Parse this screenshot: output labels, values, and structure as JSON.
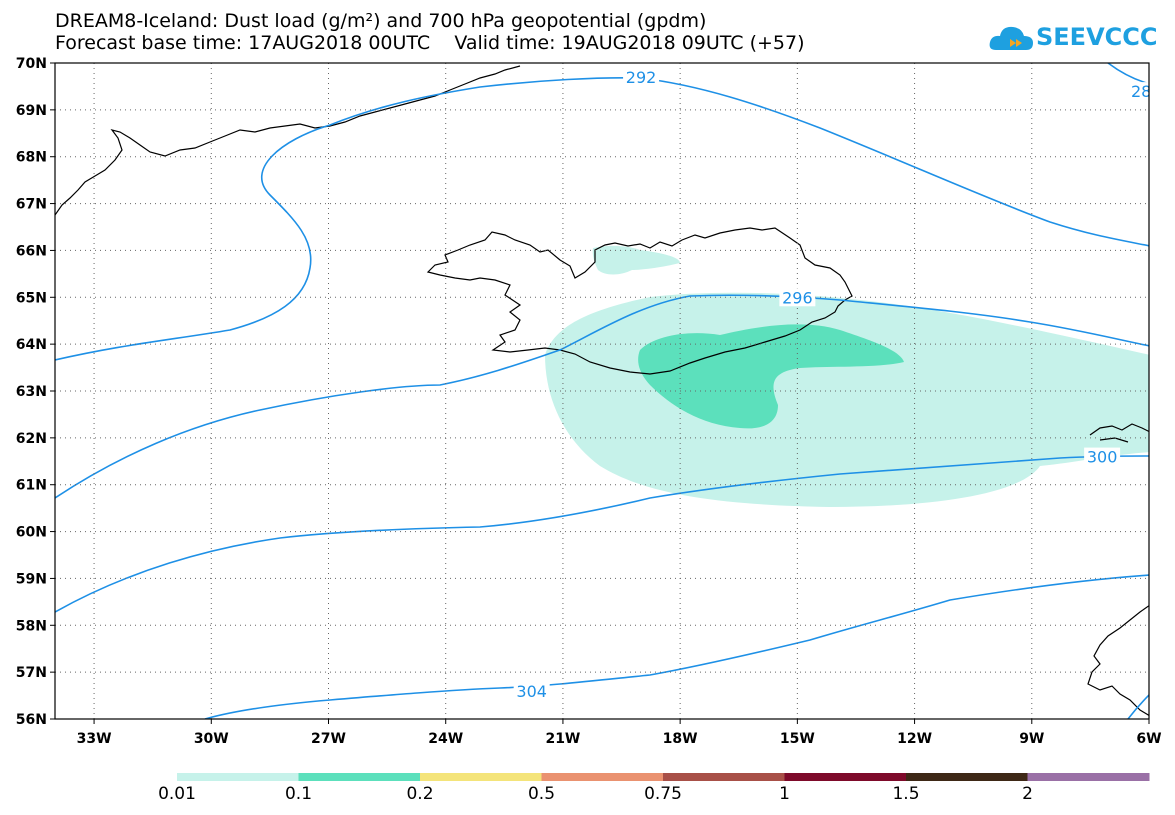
{
  "title": {
    "line1": "DREAM8-Iceland: Dust load (g/m²) and 700 hPa geopotential (gpdm)",
    "line2": "Forecast base time: 17AUG2018 00UTC    Valid time: 19AUG2018 09UTC (+57)"
  },
  "logo": {
    "text": "SEEVCCC",
    "icon": "cloud-logo-icon"
  },
  "map": {
    "lon_range": [
      -34,
      -6
    ],
    "lat_range": [
      56,
      70
    ],
    "lon_ticks": [
      {
        "value": -33,
        "label": "33W"
      },
      {
        "value": -30,
        "label": "30W"
      },
      {
        "value": -27,
        "label": "27W"
      },
      {
        "value": -24,
        "label": "24W"
      },
      {
        "value": -21,
        "label": "21W"
      },
      {
        "value": -18,
        "label": "18W"
      },
      {
        "value": -15,
        "label": "15W"
      },
      {
        "value": -12,
        "label": "12W"
      },
      {
        "value": -9,
        "label": "9W"
      },
      {
        "value": -6,
        "label": "6W"
      }
    ],
    "lat_ticks": [
      {
        "value": 70,
        "label": "70N"
      },
      {
        "value": 69,
        "label": "69N"
      },
      {
        "value": 68,
        "label": "68N"
      },
      {
        "value": 67,
        "label": "67N"
      },
      {
        "value": 66,
        "label": "66N"
      },
      {
        "value": 65,
        "label": "65N"
      },
      {
        "value": 64,
        "label": "64N"
      },
      {
        "value": 63,
        "label": "63N"
      },
      {
        "value": 62,
        "label": "62N"
      },
      {
        "value": 61,
        "label": "61N"
      },
      {
        "value": 60,
        "label": "60N"
      },
      {
        "value": 59,
        "label": "59N"
      },
      {
        "value": 58,
        "label": "58N"
      },
      {
        "value": 57,
        "label": "57N"
      },
      {
        "value": 56,
        "label": "56N"
      }
    ],
    "grid": "dotted",
    "contour_color": "#1e90e6",
    "contour_labels": [
      {
        "text": "292",
        "lon": -19.0,
        "lat": 69.7
      },
      {
        "text": "28",
        "lon": -6.2,
        "lat": 69.4
      },
      {
        "text": "296",
        "lon": -15.0,
        "lat": 65.0
      },
      {
        "text": "300",
        "lon": -7.2,
        "lat": 61.6
      },
      {
        "text": "304",
        "lon": -21.8,
        "lat": 56.6
      }
    ]
  },
  "colorbar": {
    "labels": [
      "0.01",
      "0.1",
      "0.2",
      "0.5",
      "0.75",
      "1",
      "1.5",
      "2"
    ],
    "colors": [
      "#c6f2ea",
      "#5ce0bc",
      "#f4e47a",
      "#ea9270",
      "#a85048",
      "#7e0a2a",
      "#3e2816",
      "#9a70a6"
    ]
  }
}
